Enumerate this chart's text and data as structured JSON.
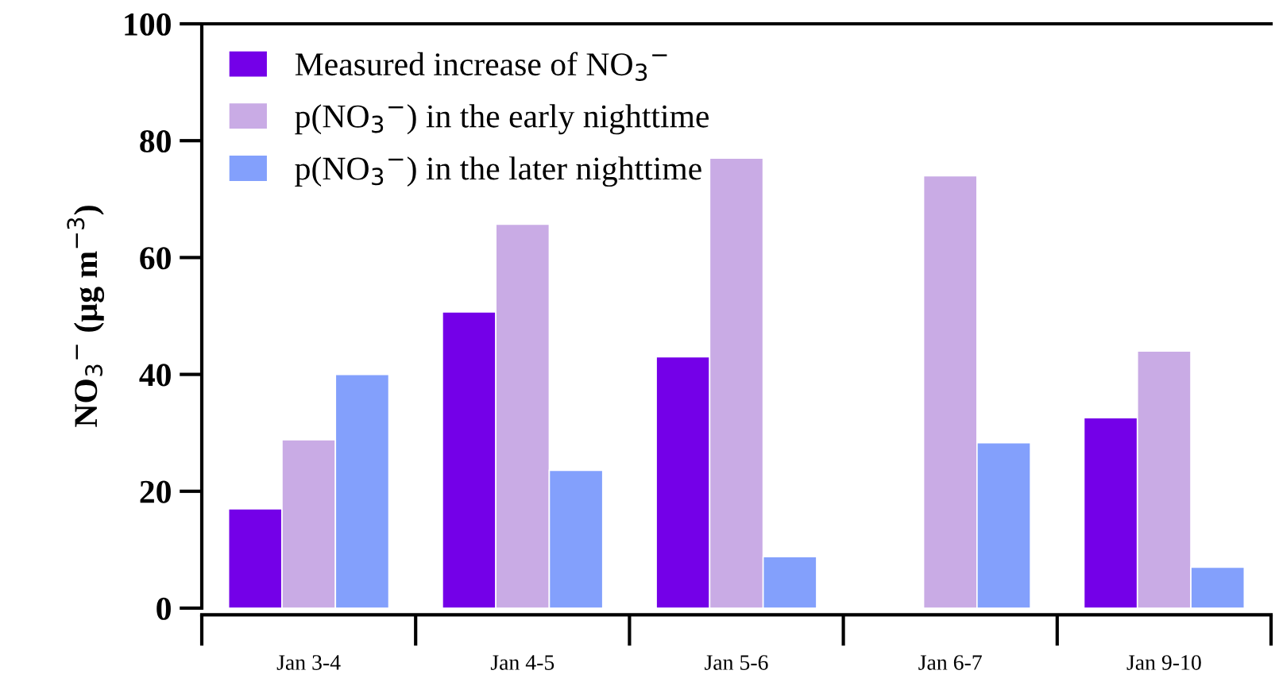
{
  "chart_data": {
    "type": "bar",
    "ylabel": "NO$_{3}$$^{−}$ (µg m$^{−3}$)",
    "categories": [
      "Jan 3-4",
      "Jan 4-5",
      "Jan 5-6",
      "Jan 6-7",
      "Jan 9-10"
    ],
    "series": [
      {
        "name": "Measured increase of NO$_{3}$$^{−}$",
        "color": "#7400e8",
        "values": [
          17.0,
          50.7,
          43.0,
          null,
          32.6
        ]
      },
      {
        "name": "p(NO$_{3}$$^{−}$) in the early nighttime",
        "color": "#c9abe5",
        "values": [
          28.8,
          65.7,
          77.0,
          74.0,
          44.0
        ]
      },
      {
        "name": "p(NO$_{3}$$^{−}$) in the later nighttime",
        "color": "#83a0fc",
        "values": [
          40.0,
          23.6,
          8.8,
          28.3,
          7.0
        ]
      }
    ],
    "ylim": [
      0,
      100
    ],
    "yticks": [
      0,
      20,
      40,
      60,
      80,
      100
    ],
    "grid": false,
    "legend": "top left"
  }
}
